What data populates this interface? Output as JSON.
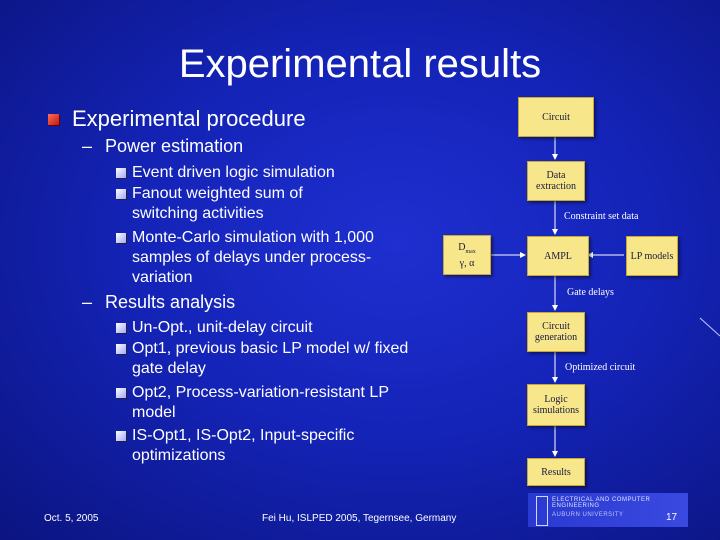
{
  "slide": {
    "title": "Experimental results",
    "bullets": {
      "procedure": "Experimental procedure",
      "power_estimation": "Power estimation",
      "power_items": [
        "Event driven logic simulation",
        "Fanout weighted sum of switching activities",
        "Monte-Carlo simulation with 1,000 samples of delays under process-variation"
      ],
      "results_analysis": "Results analysis",
      "results_items": [
        "Un-Opt., unit-delay circuit",
        "Opt1, previous basic LP model w/ fixed gate delay",
        "Opt2, Process-variation-resistant LP model",
        "IS-Opt1, IS-Opt2, Input-specific optimizations"
      ]
    },
    "sub_dash": "–"
  },
  "flowchart": {
    "circuit": "Circuit",
    "data_extraction": "Data extraction",
    "constraint_set_data": "Constraint set data",
    "ampl": "AMPL",
    "dmax_line1": "D",
    "dmax_sub": "max",
    "dmax_line2": "γ, α",
    "lp_models": "LP models",
    "gate_delays": "Gate delays",
    "circuit_generation": "Circuit generation",
    "optimized_circuit": "Optimized circuit",
    "logic_simulations": "Logic simulations",
    "results": "Results",
    "colors": {
      "box_fill": "#f7e68a",
      "box_border": "#c8a830",
      "line": "#ffffff"
    }
  },
  "footer": {
    "date": "Oct. 5, 2005",
    "citation": "Fei Hu, ISLPED 2005, Tegernsee, Germany",
    "page": "17"
  },
  "logo": {
    "line1": "ELECTRICAL AND COMPUTER ENGINEERING",
    "line2": "AUBURN UNIVERSITY"
  }
}
